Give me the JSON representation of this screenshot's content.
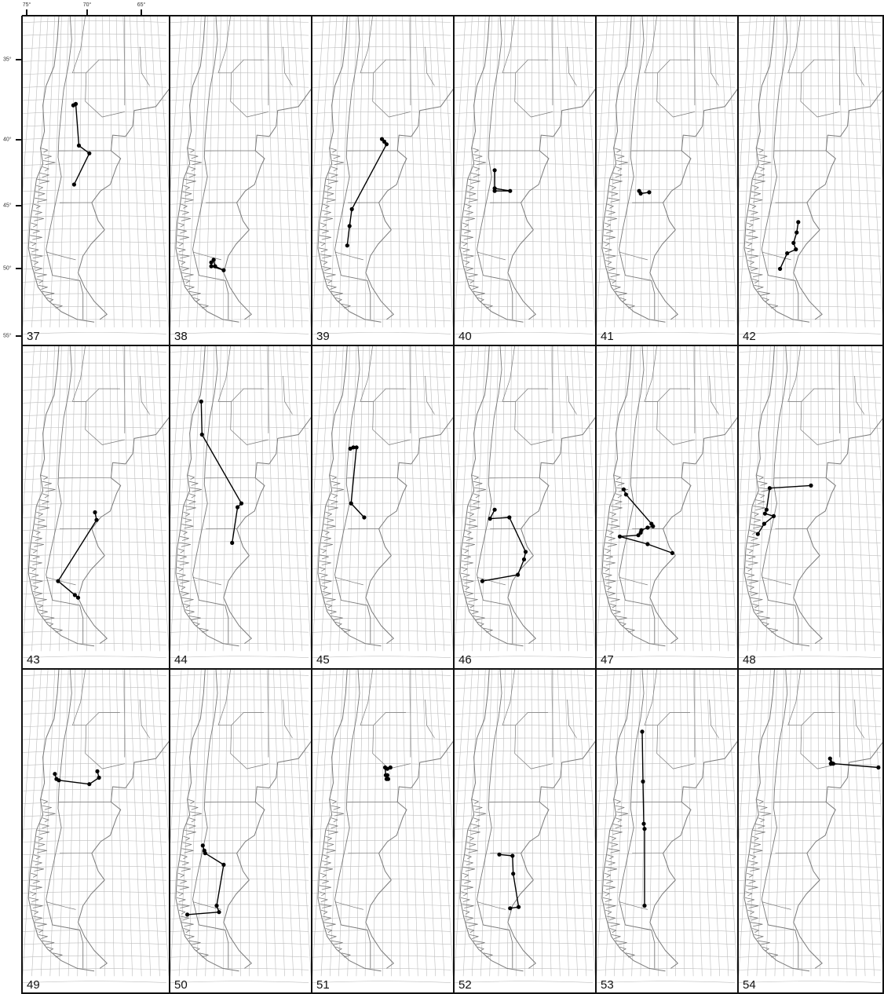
{
  "axes": {
    "longitude_labels": [
      "75°",
      "70°",
      "65°"
    ],
    "latitude_labels": [
      "35°",
      "40°",
      "45°",
      "50°",
      "55°"
    ]
  },
  "colors": {
    "grid": "#bdbdbd",
    "coast": "#7a7a7a",
    "route": "#000000",
    "frame": "#111111"
  },
  "panels": [
    {
      "label": "37",
      "route": [
        [
          -69.8,
          38.5
        ],
        [
          -69.5,
          38.4
        ],
        [
          -69.1,
          41.6
        ],
        [
          -67.8,
          42.2
        ],
        [
          -69.7,
          44.6
        ]
      ]
    },
    {
      "label": "38",
      "route": [
        [
          -70.8,
          50.6
        ],
        [
          -70.5,
          50.4
        ],
        [
          -70.3,
          50.9
        ],
        [
          -69.2,
          51.2
        ],
        [
          -70.8,
          50.9
        ]
      ]
    },
    {
      "label": "39",
      "route": [
        [
          -67.1,
          41.1
        ],
        [
          -66.8,
          41.3
        ],
        [
          -66.5,
          41.5
        ],
        [
          -71.0,
          46.5
        ],
        [
          -71.3,
          47.8
        ],
        [
          -71.6,
          49.3
        ]
      ]
    },
    {
      "label": "40",
      "route": [
        [
          -70.9,
          43.5
        ],
        [
          -70.9,
          44.9
        ],
        [
          -68.9,
          45.1
        ],
        [
          -70.9,
          45.1
        ]
      ]
    },
    {
      "label": "41",
      "route": [
        [
          -70.6,
          45.1
        ],
        [
          -70.4,
          45.3
        ],
        [
          -69.3,
          45.2
        ]
      ]
    },
    {
      "label": "42",
      "route": [
        [
          -68.6,
          47.5
        ],
        [
          -68.8,
          48.3
        ],
        [
          -69.2,
          49.1
        ],
        [
          -68.9,
          49.6
        ],
        [
          -70.0,
          49.9
        ],
        [
          -70.9,
          51.1
        ]
      ]
    },
    {
      "label": "43",
      "route": [
        [
          -67.1,
          44.7
        ],
        [
          -66.9,
          45.3
        ],
        [
          -71.7,
          50.1
        ],
        [
          -69.6,
          51.2
        ],
        [
          -69.2,
          51.4
        ]
      ]
    },
    {
      "label": "44",
      "route": [
        [
          -72.1,
          36.0
        ],
        [
          -72.0,
          38.6
        ],
        [
          -66.9,
          44.0
        ],
        [
          -67.4,
          44.3
        ],
        [
          -68.1,
          47.1
        ]
      ]
    },
    {
      "label": "45",
      "route": [
        [
          -71.2,
          39.7
        ],
        [
          -70.8,
          39.6
        ],
        [
          -70.4,
          39.6
        ],
        [
          -71.1,
          44.0
        ],
        [
          -69.4,
          45.1
        ]
      ]
    },
    {
      "label": "46",
      "route": [
        [
          -70.9,
          44.5
        ],
        [
          -71.5,
          45.2
        ],
        [
          -69.0,
          45.1
        ],
        [
          -66.9,
          47.8
        ],
        [
          -67.1,
          48.4
        ],
        [
          -67.9,
          49.6
        ],
        [
          -72.5,
          50.1
        ]
      ]
    },
    {
      "label": "47",
      "route": [
        [
          -72.6,
          42.9
        ],
        [
          -72.3,
          43.3
        ],
        [
          -69.0,
          45.6
        ],
        [
          -68.8,
          45.8
        ],
        [
          -69.5,
          45.9
        ],
        [
          -70.3,
          46.1
        ],
        [
          -70.4,
          46.3
        ],
        [
          -70.7,
          46.5
        ],
        [
          -73.1,
          46.6
        ],
        [
          -69.5,
          47.2
        ],
        [
          -66.3,
          47.9
        ]
      ]
    },
    {
      "label": "48",
      "route": [
        [
          -67.0,
          42.6
        ],
        [
          -72.2,
          42.8
        ],
        [
          -72.6,
          44.5
        ],
        [
          -72.8,
          44.8
        ],
        [
          -71.7,
          45.0
        ],
        [
          -72.9,
          45.6
        ],
        [
          -73.7,
          46.4
        ]
      ]
    },
    {
      "label": "49",
      "route": [
        [
          -72.1,
          39.8
        ],
        [
          -71.9,
          40.2
        ],
        [
          -71.6,
          40.3
        ],
        [
          -67.8,
          40.6
        ],
        [
          -66.6,
          40.1
        ],
        [
          -66.8,
          39.6
        ]
      ]
    },
    {
      "label": "50",
      "route": [
        [
          -71.9,
          45.4
        ],
        [
          -71.7,
          45.8
        ],
        [
          -71.6,
          46.0
        ],
        [
          -69.2,
          46.9
        ],
        [
          -70.1,
          50.1
        ],
        [
          -69.8,
          50.6
        ],
        [
          -73.9,
          50.8
        ]
      ]
    },
    {
      "label": "51",
      "route": [
        [
          -66.0,
          39.3
        ],
        [
          -66.4,
          39.4
        ],
        [
          -66.7,
          39.3
        ],
        [
          -66.6,
          39.9
        ],
        [
          -66.5,
          40.2
        ],
        [
          -66.3,
          40.2
        ],
        [
          -66.4,
          39.9
        ]
      ]
    },
    {
      "label": "52",
      "route": [
        [
          -70.3,
          46.1
        ],
        [
          -68.6,
          46.2
        ],
        [
          -68.5,
          47.6
        ],
        [
          -67.8,
          50.2
        ],
        [
          -68.9,
          50.3
        ]
      ]
    },
    {
      "label": "53",
      "route": [
        [
          -70.2,
          36.5
        ],
        [
          -70.1,
          40.4
        ],
        [
          -70.0,
          43.7
        ],
        [
          -69.9,
          44.1
        ],
        [
          -69.9,
          50.1
        ]
      ]
    },
    {
      "label": "54",
      "route": [
        [
          -64.5,
          39.0
        ],
        [
          -64.6,
          38.6
        ],
        [
          -64.2,
          39.0
        ],
        [
          -58.5,
          39.3
        ]
      ]
    }
  ]
}
